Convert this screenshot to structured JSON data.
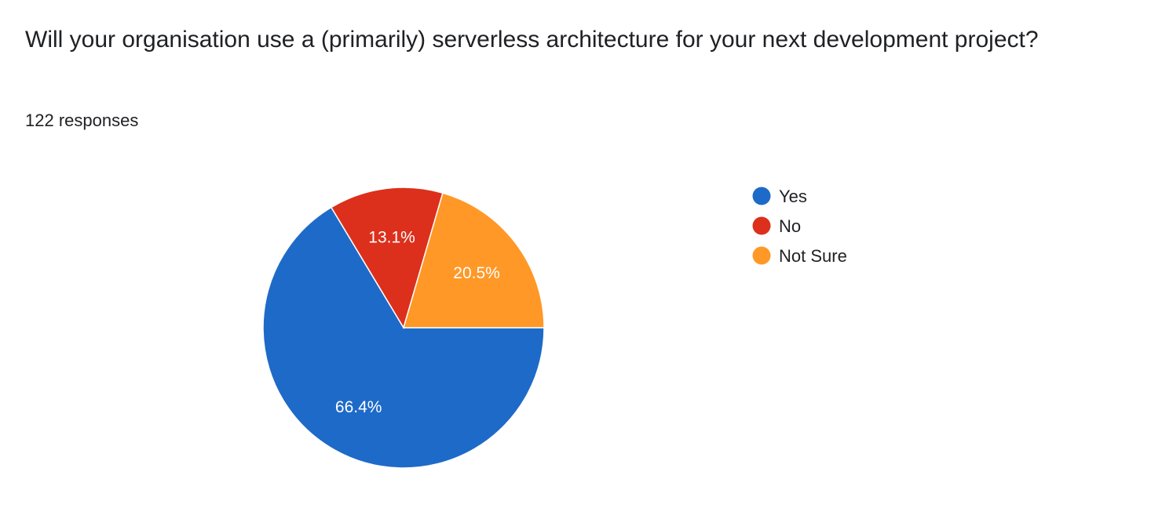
{
  "question": {
    "title": "Will your organisation use a (primarily) serverless architecture for your next development project?",
    "response_count": "122 responses"
  },
  "chart_data": {
    "type": "pie",
    "title": "Will your organisation use a (primarily) serverless architecture for your next development project?",
    "categories": [
      "Yes",
      "No",
      "Not Sure"
    ],
    "values": [
      66.4,
      13.1,
      20.5
    ],
    "value_labels": [
      "66.4%",
      "13.1%",
      "20.5%"
    ],
    "colors": [
      "#1e6ac8",
      "#dc301c",
      "#ff9826"
    ],
    "legend_position": "right",
    "start_direction": "counter-clockwise from 3 o'clock for Yes",
    "total_responses": 122
  }
}
